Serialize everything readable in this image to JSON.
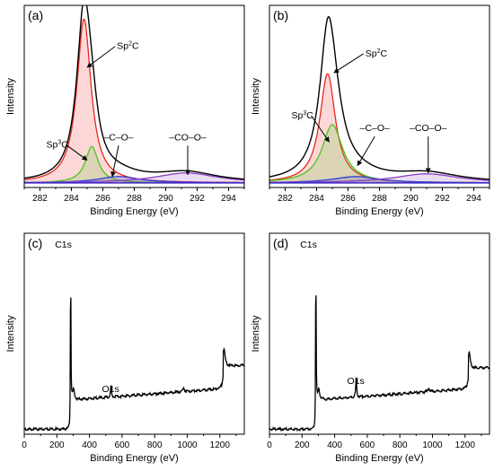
{
  "chart_data": [
    {
      "id": "a",
      "panel_label": "(a)",
      "type": "line",
      "xlabel": "Binding Energy (eV)",
      "ylabel": "Intensity",
      "xlim": [
        281,
        295
      ],
      "ylim": [
        0,
        1.0
      ],
      "xticks": [
        282,
        284,
        286,
        288,
        290,
        292,
        294
      ],
      "yticks": false,
      "fill": true,
      "peaks": [
        {
          "name": "Sp2C",
          "center": 284.8,
          "height": 0.9,
          "width": 0.55,
          "color": "#e8271f"
        },
        {
          "name": "Sp3C",
          "center": 285.3,
          "height": 0.2,
          "width": 0.5,
          "color": "#4fc21c"
        },
        {
          "name": "C-O",
          "center": 287.0,
          "height": 0.035,
          "width": 1.6,
          "color": "#2a3fd6"
        },
        {
          "name": "CO-O",
          "center": 291.3,
          "height": 0.055,
          "width": 2.4,
          "color": "#8a3fc4"
        }
      ],
      "envelope_color": "#000000",
      "baseline": 0.025,
      "baseline_color": "#3c28c8",
      "annotations": [
        {
          "main": "Sp",
          "sup": "2",
          "tail": "C",
          "text_x": 286.9,
          "text_y": 0.76,
          "tip_x": 285.0,
          "tip_y": 0.66
        },
        {
          "main": "Sp",
          "sup": "3",
          "tail": "C",
          "text_x": 282.4,
          "text_y": 0.22,
          "tip_x": 285.0,
          "tip_y": 0.15
        },
        {
          "main": "–C–O–",
          "text_x": 287.0,
          "text_y": 0.25,
          "tip_x": 286.6,
          "tip_y": 0.06
        },
        {
          "main": "–CO–O–",
          "text_x": 291.4,
          "text_y": 0.25,
          "tip_x": 291.4,
          "tip_y": 0.07
        }
      ]
    },
    {
      "id": "b",
      "panel_label": "(b)",
      "type": "line",
      "xlabel": "Binding Energy (eV)",
      "ylabel": "Intensity",
      "xlim": [
        281,
        295
      ],
      "ylim": [
        0,
        1.0
      ],
      "xticks": [
        282,
        284,
        286,
        288,
        290,
        292,
        294
      ],
      "yticks": false,
      "fill": true,
      "peaks": [
        {
          "name": "Sp2C",
          "center": 284.7,
          "height": 0.6,
          "width": 0.6,
          "color": "#e8271f"
        },
        {
          "name": "Sp3C",
          "center": 285.0,
          "height": 0.32,
          "width": 0.8,
          "color": "#4fc21c"
        },
        {
          "name": "C-O",
          "center": 286.5,
          "height": 0.035,
          "width": 1.8,
          "color": "#2a3fd6"
        },
        {
          "name": "CO-O",
          "center": 291.0,
          "height": 0.05,
          "width": 2.5,
          "color": "#8a3fc4"
        }
      ],
      "envelope_color": "#000000",
      "baseline": 0.025,
      "baseline_color": "#3c28c8",
      "annotations": [
        {
          "main": "Sp",
          "sup": "2",
          "tail": "C",
          "text_x": 287.1,
          "text_y": 0.72,
          "tip_x": 285.1,
          "tip_y": 0.63
        },
        {
          "main": "Sp",
          "sup": "3",
          "tail": "C",
          "text_x": 282.4,
          "text_y": 0.38,
          "tip_x": 284.8,
          "tip_y": 0.25
        },
        {
          "main": "–C–O–",
          "text_x": 287.7,
          "text_y": 0.3,
          "tip_x": 286.6,
          "tip_y": 0.12
        },
        {
          "main": "–CO–O–",
          "text_x": 291.1,
          "text_y": 0.3,
          "tip_x": 291.1,
          "tip_y": 0.08
        }
      ]
    },
    {
      "id": "c",
      "panel_label": "(c)",
      "type": "line",
      "xlabel": "Binding Energy (eV)",
      "ylabel": "Intensity",
      "xlim": [
        0,
        1350
      ],
      "ylim": [
        0,
        1.0
      ],
      "xticks": [
        0,
        200,
        400,
        600,
        800,
        1000,
        1200
      ],
      "yticks": false,
      "fill": false,
      "survey": {
        "c1s_height": 0.86,
        "o1s_height": 0.06,
        "auger_height": 0.2
      },
      "annotations": [
        {
          "main": "C1s",
          "text_x": 240,
          "text_y": 0.92
        },
        {
          "main": "O1s",
          "text_x": 530,
          "text_y": 0.2
        }
      ]
    },
    {
      "id": "d",
      "panel_label": "(d)",
      "type": "line",
      "xlabel": "Binding Energy (eV)",
      "ylabel": "Intensity",
      "xlim": [
        0,
        1350
      ],
      "ylim": [
        0,
        1.0
      ],
      "xticks": [
        0,
        200,
        400,
        600,
        800,
        1000,
        1200
      ],
      "yticks": false,
      "fill": false,
      "survey": {
        "c1s_height": 0.88,
        "o1s_height": 0.1,
        "auger_height": 0.18
      },
      "annotations": [
        {
          "main": "C1s",
          "text_x": 240,
          "text_y": 0.92
        },
        {
          "main": "O1s",
          "text_x": 530,
          "text_y": 0.24
        }
      ]
    }
  ]
}
